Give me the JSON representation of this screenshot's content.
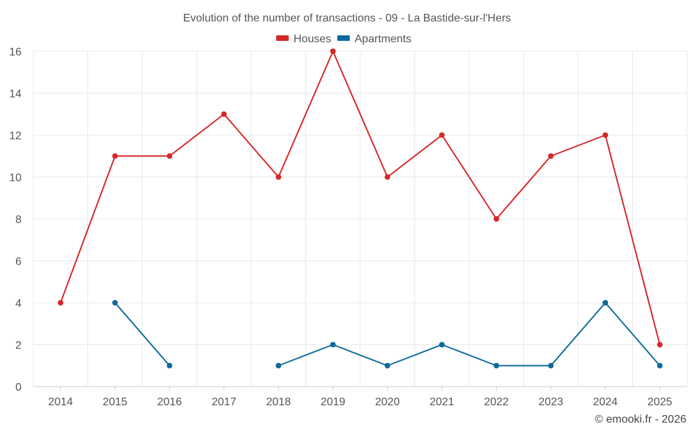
{
  "chart_data": {
    "type": "line",
    "title": "Evolution of the number of transactions - 09 - La Bastide-sur-l'Hers",
    "categories": [
      "2014",
      "2015",
      "2016",
      "2017",
      "2018",
      "2019",
      "2020",
      "2021",
      "2022",
      "2023",
      "2024",
      "2025"
    ],
    "series": [
      {
        "name": "Houses",
        "color": "#d62728",
        "values": [
          4,
          11,
          11,
          13,
          10,
          16,
          10,
          12,
          8,
          11,
          12,
          2
        ]
      },
      {
        "name": "Apartments",
        "color": "#0e6a9c",
        "values": [
          null,
          4,
          1,
          null,
          1,
          2,
          1,
          2,
          1,
          1,
          4,
          1
        ]
      }
    ],
    "ylim": [
      0,
      16
    ],
    "yticks": [
      0,
      2,
      4,
      6,
      8,
      10,
      12,
      14,
      16
    ],
    "grid": true,
    "legend_position": "top-center",
    "xlabel": "",
    "ylabel": ""
  },
  "credit": "© emooki.fr - 2026"
}
